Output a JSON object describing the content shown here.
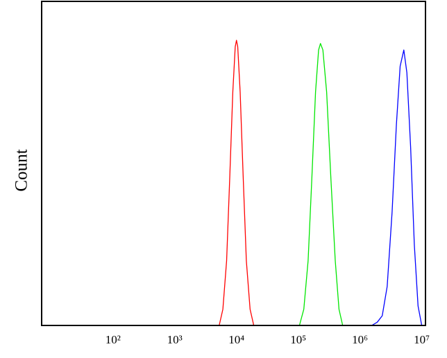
{
  "chart_data": {
    "type": "line",
    "y_label": "Count",
    "xscale": "log",
    "xlim": [
      7,
      11500000
    ],
    "ylim": [
      0,
      100
    ],
    "xticks": [
      {
        "value": 100,
        "label": "10²"
      },
      {
        "value": 1000,
        "label": "10³"
      },
      {
        "value": 10000,
        "label": "10⁴"
      },
      {
        "value": 100000,
        "label": "10⁵"
      },
      {
        "value": 1000000,
        "label": "10⁶"
      },
      {
        "value": 10000000,
        "label": "10⁷"
      }
    ],
    "series": [
      {
        "color": "#ff0000",
        "x": [
          5250,
          6030,
          6920,
          7760,
          8710,
          9550,
          10000,
          10470,
          11480,
          12880,
          14450,
          16600,
          19050
        ],
        "values": [
          0,
          5,
          20,
          45,
          72,
          86,
          88,
          86,
          72,
          45,
          20,
          5,
          0
        ]
      },
      {
        "color": "#00e600",
        "x": [
          104700,
          123000,
          144500,
          166000,
          190500,
          213800,
          229100,
          251200,
          288400,
          338800,
          398100,
          457100,
          524800
        ],
        "values": [
          0,
          5,
          20,
          45,
          72,
          85,
          87,
          85,
          72,
          45,
          20,
          5,
          0
        ]
      },
      {
        "color": "#0000ff",
        "x": [
          1549000,
          1905000,
          2291000,
          2754000,
          3311000,
          3890000,
          4467000,
          5129000,
          5754000,
          6607000,
          7586000,
          8710000,
          10000000
        ],
        "values": [
          0,
          1,
          3,
          12,
          35,
          62,
          80,
          85,
          78,
          55,
          25,
          6,
          0
        ]
      }
    ]
  }
}
